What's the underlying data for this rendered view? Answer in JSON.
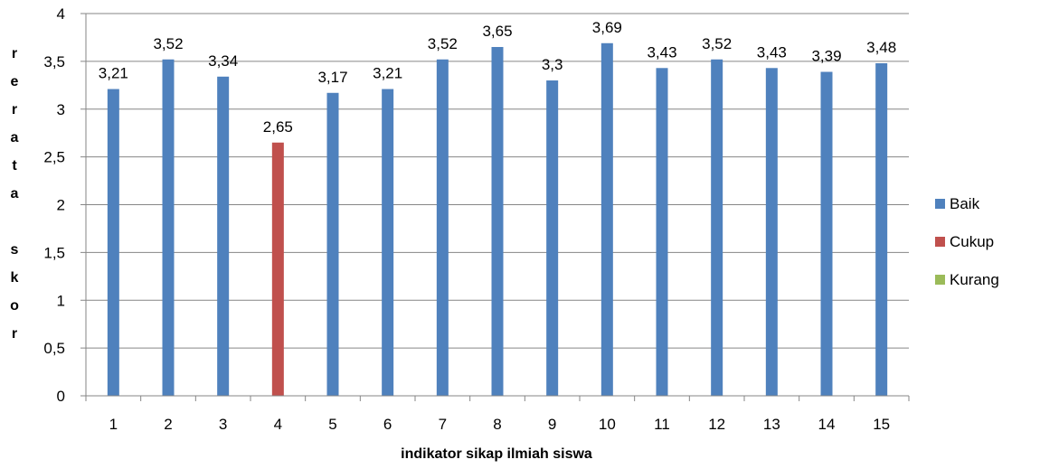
{
  "chart_data": {
    "type": "bar",
    "categories": [
      "1",
      "2",
      "3",
      "4",
      "5",
      "6",
      "7",
      "8",
      "9",
      "10",
      "11",
      "12",
      "13",
      "14",
      "15"
    ],
    "series": [
      {
        "name": "Baik",
        "color": "#4f81bd",
        "values": [
          3.21,
          3.52,
          3.34,
          null,
          3.17,
          3.21,
          3.52,
          3.65,
          3.3,
          3.69,
          3.43,
          3.52,
          3.43,
          3.39,
          3.48
        ]
      },
      {
        "name": "Cukup",
        "color": "#c0504d",
        "values": [
          null,
          null,
          null,
          2.65,
          null,
          null,
          null,
          null,
          null,
          null,
          null,
          null,
          null,
          null,
          null
        ]
      },
      {
        "name": "Kurang",
        "color": "#9bbb59",
        "values": [
          null,
          null,
          null,
          null,
          null,
          null,
          null,
          null,
          null,
          null,
          null,
          null,
          null,
          null,
          null
        ]
      }
    ],
    "data_labels": [
      "3,21",
      "3,52",
      "3,34",
      "2,65",
      "3,17",
      "3,21",
      "3,52",
      "3,65",
      "3,3",
      "3,69",
      "3,43",
      "3,52",
      "3,43",
      "3,39",
      "3,48"
    ],
    "y_ticks": [
      "0",
      "0,5",
      "1",
      "1,5",
      "2",
      "2,5",
      "3",
      "3,5",
      "4"
    ],
    "ylim": [
      0,
      4
    ],
    "ylabel": "rerata skor",
    "ylabel_glyphs": [
      "r",
      "e",
      "r",
      "a",
      "t",
      "a",
      "",
      "s",
      "k",
      "o",
      "r"
    ],
    "xlabel": "indikator sikap ilmiah siswa",
    "grid": true,
    "legend_position": "right"
  }
}
